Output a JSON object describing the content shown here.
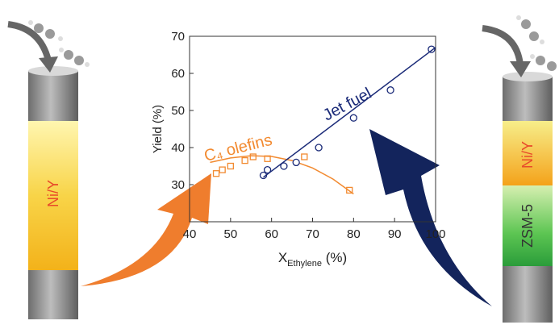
{
  "chart_data": {
    "type": "scatter",
    "y_label": "Yield (%)",
    "x_label_main": "X",
    "x_label_sub": "Ethylene",
    "x_label_unit": " (%)",
    "xlim": [
      40,
      100
    ],
    "xticks": [
      40,
      50,
      60,
      70,
      80,
      90,
      100
    ],
    "ylim": [
      20,
      70
    ],
    "yticks": [
      30,
      40,
      50,
      60,
      70
    ],
    "series": [
      {
        "name": "C₄ olefins",
        "color": "#f28a30",
        "marker": "square",
        "x": [
          46.5,
          48,
          50,
          53.5,
          55.5,
          59,
          68,
          79
        ],
        "values": [
          33,
          34,
          35,
          36.5,
          37.5,
          37,
          37.5,
          28.5
        ]
      },
      {
        "color": "#f28a30",
        "marker": "none",
        "x": [
          45,
          50,
          55,
          60,
          65,
          70,
          75,
          80
        ],
        "values": [
          36,
          37.2,
          37.8,
          37.6,
          36.5,
          34.5,
          31.5,
          27.5
        ]
      },
      {
        "name": "Jet fuel",
        "color": "#1a2a78",
        "marker": "circle",
        "x": [
          58,
          59,
          63,
          66,
          71.5,
          80,
          89,
          99
        ],
        "values": [
          32.5,
          34,
          35,
          36,
          40,
          48,
          55.5,
          66.5
        ]
      },
      {
        "color": "#1a2a78",
        "marker": "none",
        "x": [
          58,
          100
        ],
        "values": [
          32,
          67
        ]
      }
    ]
  },
  "reactors": {
    "left": [
      "Ni/Y"
    ],
    "right": [
      "Ni/Y",
      "ZSM-5"
    ]
  }
}
